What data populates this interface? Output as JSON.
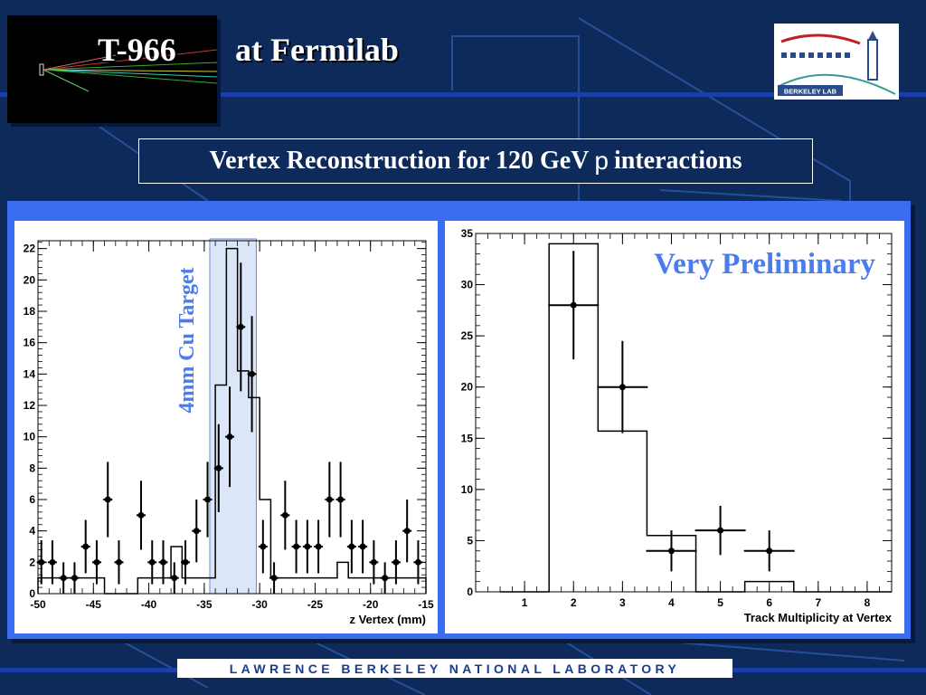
{
  "header": {
    "title_code": "T-966",
    "title_place": "at Fermilab"
  },
  "logo": {
    "text": "BERKELEY LAB"
  },
  "subtitle": {
    "before": "Vertex Reconstruction for 120 GeV",
    "symbol": "p",
    "after": "interactions"
  },
  "footer": {
    "text": "Lawrence Berkeley National Laboratory"
  },
  "colors": {
    "background": "#0d2a5a",
    "panel": "#3a6ef0",
    "accent_text": "#4a7cf0",
    "target_band": "#dbe6f8"
  },
  "chart_data": [
    {
      "type": "bar",
      "xlabel": "z Vertex (mm)",
      "ylabel": "",
      "xlim": [
        -50,
        -15
      ],
      "ylim": [
        0,
        22.5
      ],
      "x_ticks": [
        -50,
        -45,
        -40,
        -35,
        -30,
        -25,
        -20,
        -15
      ],
      "y_ticks": [
        0,
        2,
        4,
        6,
        8,
        10,
        12,
        14,
        16,
        18,
        20,
        22
      ],
      "annotation": "4mm Cu Target",
      "target_band": [
        -34.5,
        -30.3
      ],
      "histogram": {
        "edges": [
          -50,
          -49,
          -48,
          -47,
          -46,
          -45,
          -44,
          -43,
          -42,
          -41,
          -40,
          -39,
          -38,
          -37,
          -36,
          -35,
          -34,
          -33,
          -32,
          -31,
          -30,
          -29,
          -28,
          -27,
          -26,
          -25,
          -24,
          -23,
          -22,
          -21,
          -20,
          -19,
          -18,
          -17,
          -16,
          -15
        ],
        "values": [
          1,
          1,
          1,
          1,
          1,
          1,
          0,
          0,
          0,
          1,
          1,
          1,
          3,
          1,
          1,
          1,
          13.3,
          22,
          14.2,
          12.5,
          6,
          1,
          1,
          1,
          1,
          1,
          1,
          2,
          1,
          1,
          1,
          1,
          1,
          1,
          1
        ]
      },
      "points": [
        {
          "x": -49.7,
          "y": 2,
          "err": 1.4
        },
        {
          "x": -48.7,
          "y": 2,
          "err": 1.4
        },
        {
          "x": -47.7,
          "y": 1,
          "err": 1
        },
        {
          "x": -46.7,
          "y": 1,
          "err": 1
        },
        {
          "x": -45.7,
          "y": 3,
          "err": 1.7
        },
        {
          "x": -44.7,
          "y": 2,
          "err": 1.4
        },
        {
          "x": -43.7,
          "y": 6,
          "err": 2.4
        },
        {
          "x": -42.7,
          "y": 2,
          "err": 1.4
        },
        {
          "x": -40.7,
          "y": 5,
          "err": 2.2
        },
        {
          "x": -39.7,
          "y": 2,
          "err": 1.4
        },
        {
          "x": -38.7,
          "y": 2,
          "err": 1.4
        },
        {
          "x": -37.7,
          "y": 1,
          "err": 1
        },
        {
          "x": -36.7,
          "y": 2,
          "err": 1.4
        },
        {
          "x": -35.7,
          "y": 4,
          "err": 2
        },
        {
          "x": -34.7,
          "y": 6,
          "err": 2.4
        },
        {
          "x": -33.7,
          "y": 8,
          "err": 2.8
        },
        {
          "x": -32.7,
          "y": 10,
          "err": 3.2
        },
        {
          "x": -31.7,
          "y": 17,
          "err": 4.1
        },
        {
          "x": -30.7,
          "y": 14,
          "err": 3.7
        },
        {
          "x": -29.7,
          "y": 3,
          "err": 1.7
        },
        {
          "x": -28.7,
          "y": 1,
          "err": 1
        },
        {
          "x": -27.7,
          "y": 5,
          "err": 2.2
        },
        {
          "x": -26.7,
          "y": 3,
          "err": 1.7
        },
        {
          "x": -25.7,
          "y": 3,
          "err": 1.7
        },
        {
          "x": -24.7,
          "y": 3,
          "err": 1.7
        },
        {
          "x": -23.7,
          "y": 6,
          "err": 2.4
        },
        {
          "x": -22.7,
          "y": 6,
          "err": 2.4
        },
        {
          "x": -21.7,
          "y": 3,
          "err": 1.7
        },
        {
          "x": -20.7,
          "y": 3,
          "err": 1.7
        },
        {
          "x": -19.7,
          "y": 2,
          "err": 1.4
        },
        {
          "x": -18.7,
          "y": 1,
          "err": 1
        },
        {
          "x": -17.7,
          "y": 2,
          "err": 1.4
        },
        {
          "x": -16.7,
          "y": 4,
          "err": 2
        },
        {
          "x": -15.7,
          "y": 2,
          "err": 1.4
        }
      ]
    },
    {
      "type": "bar",
      "xlabel": "Track Multiplicity at Vertex",
      "ylabel": "",
      "xlim": [
        0,
        8.5
      ],
      "ylim": [
        0,
        35
      ],
      "x_ticks": [
        1,
        2,
        3,
        4,
        5,
        6,
        7,
        8
      ],
      "y_ticks": [
        0,
        5,
        10,
        15,
        20,
        25,
        30,
        35
      ],
      "annotation": "Very Preliminary",
      "histogram": {
        "edges": [
          0.5,
          1.5,
          2.5,
          3.5,
          4.5,
          5.5,
          6.5,
          7.5,
          8.5
        ],
        "values": [
          0,
          34,
          15.7,
          5.5,
          0,
          1,
          0,
          0
        ]
      },
      "points": [
        {
          "x": 2,
          "y": 28,
          "err": 5.3
        },
        {
          "x": 3,
          "y": 20,
          "err": 4.5
        },
        {
          "x": 4,
          "y": 4,
          "err": 2
        },
        {
          "x": 5,
          "y": 6,
          "err": 2.4
        },
        {
          "x": 6,
          "y": 4,
          "err": 2
        }
      ]
    }
  ]
}
